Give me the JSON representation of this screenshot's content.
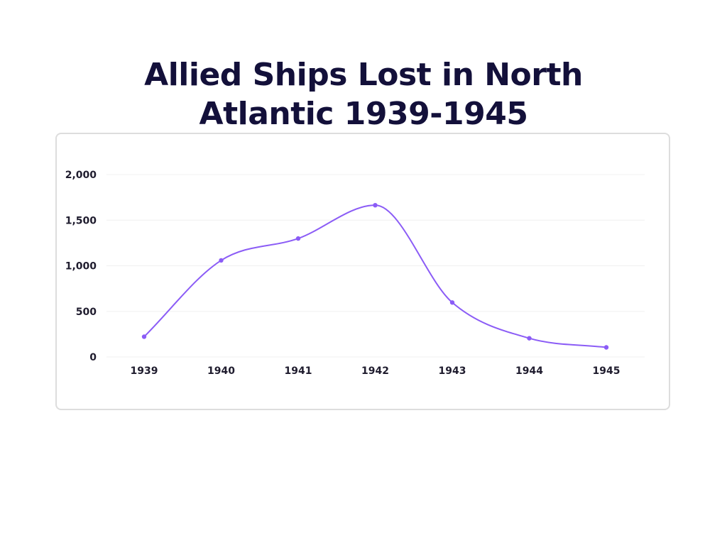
{
  "chart_data": {
    "type": "line",
    "title": "Allied Ships Lost in North Atlantic 1939-1945",
    "categories": [
      "1939",
      "1940",
      "1941",
      "1942",
      "1943",
      "1944",
      "1945"
    ],
    "series": [
      {
        "values": [
          222,
          1059,
          1299,
          1664,
          597,
          205,
          105
        ]
      }
    ],
    "ylim": [
      0,
      2000
    ],
    "yticks": [
      0,
      500,
      1000,
      1500,
      2000
    ],
    "ytick_labels": [
      "0",
      "500",
      "1,000",
      "1,500",
      "2,000"
    ],
    "grid": true,
    "xlabel": "",
    "ylabel": ""
  },
  "colors": {
    "line": "#8b5cf6",
    "grid": "#f0f0f0",
    "title": "#13103a",
    "axis_text": "#1f1c2e"
  }
}
